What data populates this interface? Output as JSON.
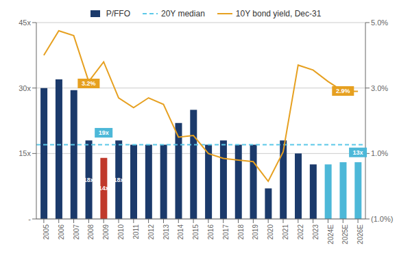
{
  "chart_data": {
    "type": "bar",
    "categories": [
      "2005",
      "2006",
      "2007",
      "2008",
      "2009",
      "2010",
      "2011",
      "2012",
      "2013",
      "2014",
      "2015",
      "2016",
      "2017",
      "2018",
      "2019",
      "2020",
      "2021",
      "2022",
      "2023",
      "2024E",
      "2025E",
      "2026E"
    ],
    "series": [
      {
        "name": "P/FFO",
        "type": "bar",
        "color": "#1b3a6b",
        "colors": [
          "#1b3a6b",
          "#1b3a6b",
          "#1b3a6b",
          "#1b3a6b",
          "#c0392b",
          "#1b3a6b",
          "#1b3a6b",
          "#1b3a6b",
          "#1b3a6b",
          "#1b3a6b",
          "#1b3a6b",
          "#1b3a6b",
          "#1b3a6b",
          "#1b3a6b",
          "#1b3a6b",
          "#1b3a6b",
          "#1b3a6b",
          "#1b3a6b",
          "#1b3a6b",
          "#4db8d8",
          "#4db8d8",
          "#4db8d8"
        ],
        "values": [
          30,
          32,
          29.5,
          18,
          14,
          18,
          17,
          17,
          17,
          22,
          25,
          17,
          18,
          17,
          17,
          7,
          18,
          15,
          12.5,
          12.5,
          13,
          13
        ]
      },
      {
        "name": "10Y bond yield, Dec-31",
        "type": "line",
        "axis": "y2",
        "color": "#e6a020",
        "values": [
          4.0,
          4.75,
          4.6,
          3.2,
          3.8,
          2.7,
          2.4,
          2.7,
          2.5,
          1.5,
          1.55,
          1.0,
          0.85,
          0.8,
          0.75,
          0.15,
          1.05,
          3.7,
          3.55,
          3.2,
          2.9,
          2.9
        ]
      }
    ],
    "reference_lines": [
      {
        "name": "20Y median",
        "value": 17.0,
        "color": "#5bc8e8",
        "line_style": "dashed"
      }
    ],
    "ylim": [
      0,
      45
    ],
    "yticks": [
      {
        "value": 0,
        "label": "-"
      },
      {
        "value": 15,
        "label": "15x"
      },
      {
        "value": 30,
        "label": "30x"
      },
      {
        "value": 45,
        "label": "45x"
      }
    ],
    "y2lim": [
      -1.0,
      5.0
    ],
    "y2ticks": [
      {
        "value": -1.0,
        "label": "(1.0%)"
      },
      {
        "value": 1.0,
        "label": "1.0%"
      },
      {
        "value": 3.0,
        "label": "3.0%"
      },
      {
        "value": 5.0,
        "label": "5.0%"
      }
    ],
    "grid": true,
    "legend": "top",
    "annotations": [
      {
        "text": "18x",
        "x": "2008",
        "y": 9
      },
      {
        "text": "14x",
        "x": "2009",
        "y": 7
      },
      {
        "text": "18x",
        "x": "2010",
        "y": 9
      },
      {
        "text": "19x",
        "x": "2009",
        "y": 19.75,
        "color": "#4db8d8"
      },
      {
        "text": "13x",
        "x": "2026E",
        "y": 15.25,
        "color": "#4db8d8"
      },
      {
        "text": "3.2%",
        "x": "2008",
        "y": 3.14,
        "axis": "y2",
        "color": "#e6a020"
      },
      {
        "text": "2.9%",
        "x": "2025E",
        "y": 2.91,
        "axis": "y2",
        "color": "#e6a020"
      }
    ]
  }
}
